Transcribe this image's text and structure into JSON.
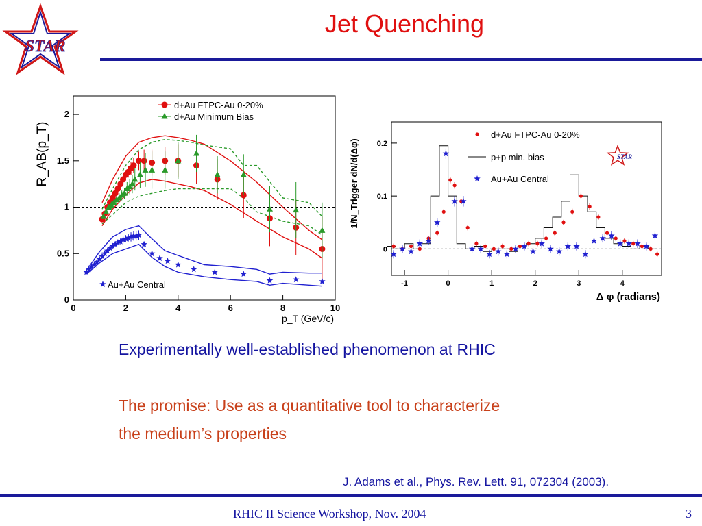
{
  "slide": {
    "title": "Jet Quenching",
    "logo_text": "STAR",
    "bullet1": "Experimentally well-established phenomenon at RHIC",
    "bullet2_line1": "The promise: Use as a quantitative tool to characterize",
    "bullet2_line2": "the medium’s properties",
    "citation": "J. Adams et al., Phys. Rev. Lett. 91, 072304 (2003).",
    "footer": "RHIC II Science Workshop, Nov. 2004",
    "page_number": "3",
    "colors": {
      "title": "#e01010",
      "bar": "#1a1a9a",
      "blue_text": "#1414a0",
      "orange_text": "#c8401a"
    }
  },
  "chart_data": [
    {
      "type": "scatter",
      "ylabel": "R_AB(p_T)",
      "xlabel": "p_T (GeV/c)",
      "xlim": [
        0,
        10
      ],
      "ylim": [
        0,
        2.2
      ],
      "xticks": [
        0,
        2,
        4,
        6,
        8,
        10
      ],
      "yticks": [
        0,
        0.5,
        1,
        1.5,
        2
      ],
      "reference_line_y": 1,
      "legend_placement": "top",
      "series": [
        {
          "name": "d+Au FTPC-Au 0-20%",
          "color": "#e01010",
          "marker": "circle",
          "x": [
            1.1,
            1.2,
            1.3,
            1.4,
            1.5,
            1.6,
            1.7,
            1.8,
            1.9,
            2.0,
            2.1,
            2.2,
            2.3,
            2.5,
            2.7,
            3.0,
            3.5,
            4.0,
            4.7,
            5.5,
            6.5,
            7.5,
            8.5,
            9.5
          ],
          "y": [
            0.87,
            0.93,
            1.0,
            1.05,
            1.1,
            1.15,
            1.2,
            1.25,
            1.3,
            1.35,
            1.38,
            1.42,
            1.45,
            1.5,
            1.5,
            1.48,
            1.5,
            1.5,
            1.45,
            1.3,
            1.13,
            0.88,
            0.78,
            0.55
          ],
          "err": [
            0.03,
            0.03,
            0.03,
            0.03,
            0.04,
            0.04,
            0.04,
            0.05,
            0.05,
            0.05,
            0.06,
            0.07,
            0.08,
            0.1,
            0.12,
            0.14,
            0.15,
            0.18,
            0.2,
            0.22,
            0.25,
            0.3,
            0.3,
            0.35
          ]
        },
        {
          "name": "d+Au Minimum Bias",
          "color": "#2a9a2a",
          "marker": "triangle",
          "x": [
            1.15,
            1.25,
            1.35,
            1.45,
            1.55,
            1.65,
            1.75,
            1.85,
            1.95,
            2.05,
            2.15,
            2.25,
            2.35,
            2.55,
            2.75,
            3.0,
            3.5,
            4.0,
            4.7,
            5.5,
            6.5,
            7.5,
            8.5,
            9.5
          ],
          "y": [
            0.9,
            0.95,
            1.0,
            1.02,
            1.05,
            1.08,
            1.1,
            1.13,
            1.15,
            1.2,
            1.22,
            1.25,
            1.3,
            1.35,
            1.4,
            1.4,
            1.4,
            1.5,
            1.58,
            1.35,
            1.35,
            0.98,
            0.97,
            0.75
          ],
          "err": [
            0.03,
            0.03,
            0.03,
            0.04,
            0.04,
            0.04,
            0.05,
            0.05,
            0.06,
            0.07,
            0.08,
            0.1,
            0.12,
            0.14,
            0.18,
            0.2,
            0.2,
            0.2,
            0.2,
            0.2,
            0.22,
            0.25,
            0.3,
            0.3
          ]
        },
        {
          "name": "Au+Au Central",
          "color": "#2020d0",
          "marker": "star",
          "x": [
            0.5,
            0.6,
            0.7,
            0.8,
            0.9,
            1.0,
            1.1,
            1.2,
            1.3,
            1.4,
            1.5,
            1.6,
            1.7,
            1.8,
            1.9,
            2.0,
            2.1,
            2.2,
            2.3,
            2.4,
            2.5,
            2.7,
            3.0,
            3.3,
            3.6,
            4.0,
            4.6,
            5.4,
            6.5,
            7.5,
            8.5,
            9.5
          ],
          "y": [
            0.3,
            0.33,
            0.36,
            0.38,
            0.41,
            0.44,
            0.47,
            0.5,
            0.53,
            0.56,
            0.58,
            0.6,
            0.62,
            0.63,
            0.65,
            0.66,
            0.67,
            0.68,
            0.69,
            0.69,
            0.7,
            0.6,
            0.5,
            0.45,
            0.42,
            0.38,
            0.33,
            0.3,
            0.28,
            0.21,
            0.22,
            0.2
          ],
          "err": [
            0.01,
            0.01,
            0.01,
            0.01,
            0.01,
            0.01,
            0.02,
            0.02,
            0.02,
            0.02,
            0.03,
            0.03,
            0.03,
            0.03,
            0.04,
            0.04,
            0.04,
            0.05,
            0.05,
            0.05,
            0.05,
            0.03,
            0.02,
            0.02,
            0.02,
            0.02,
            0.02,
            0.02,
            0.02,
            0.02,
            0.02,
            0.02
          ]
        }
      ],
      "bands": [
        {
          "for": "d+Au FTPC-Au 0-20%",
          "color": "#e01010",
          "style": "solid",
          "x": [
            1.1,
            1.5,
            2.0,
            2.5,
            3.0,
            3.5,
            4.0,
            4.5,
            5.0,
            6.0,
            7.0,
            8.0,
            9.0,
            9.5
          ],
          "upper": [
            1.05,
            1.3,
            1.55,
            1.7,
            1.75,
            1.77,
            1.75,
            1.72,
            1.68,
            1.5,
            1.27,
            1.0,
            0.75,
            0.65
          ],
          "lower": [
            0.8,
            0.98,
            1.13,
            1.26,
            1.3,
            1.28,
            1.25,
            1.22,
            1.18,
            1.03,
            0.85,
            0.68,
            0.55,
            0.45
          ]
        },
        {
          "for": "d+Au Minimum Bias",
          "color": "#2a9a2a",
          "style": "dashed",
          "x": [
            1.1,
            1.5,
            2.0,
            2.5,
            3.0,
            3.5,
            4.0,
            4.5,
            5.0,
            6.0,
            6.5,
            7.0,
            8.0,
            9.0,
            9.5
          ],
          "upper": [
            0.98,
            1.2,
            1.45,
            1.62,
            1.7,
            1.73,
            1.72,
            1.7,
            1.67,
            1.63,
            1.45,
            1.45,
            1.1,
            1.05,
            0.9
          ],
          "lower": [
            0.82,
            0.92,
            1.05,
            1.12,
            1.15,
            1.18,
            1.2,
            1.2,
            1.2,
            1.2,
            1.1,
            0.95,
            0.85,
            0.8,
            0.7
          ]
        },
        {
          "for": "Au+Au Central",
          "color": "#2020d0",
          "style": "solid",
          "x": [
            0.5,
            1.0,
            1.5,
            2.0,
            2.5,
            3.0,
            3.5,
            4.0,
            5.0,
            6.0,
            7.0,
            7.5,
            8.0,
            9.0,
            9.5
          ],
          "upper": [
            0.32,
            0.52,
            0.68,
            0.76,
            0.8,
            0.66,
            0.53,
            0.48,
            0.38,
            0.36,
            0.33,
            0.28,
            0.3,
            0.29,
            0.29
          ],
          "lower": [
            0.28,
            0.4,
            0.5,
            0.55,
            0.6,
            0.46,
            0.36,
            0.3,
            0.25,
            0.22,
            0.2,
            0.16,
            0.18,
            0.16,
            0.15
          ]
        }
      ]
    },
    {
      "type": "scatter",
      "ylabel": "1/N_Trigger dN/d(Δφ)",
      "xlabel": "Δ φ (radians)",
      "xlim": [
        -1.3,
        4.9
      ],
      "ylim": [
        -0.05,
        0.24
      ],
      "xticks": [
        -1,
        0,
        1,
        2,
        3,
        4
      ],
      "yticks": [
        0,
        0.1,
        0.2
      ],
      "reference_line_y": 0,
      "legend_placement": "top-right",
      "series": [
        {
          "name": "p+p min. bias",
          "color": "#111111",
          "marker": "step-line",
          "x": [
            -1.3,
            -1.1,
            -0.9,
            -0.7,
            -0.5,
            -0.3,
            -0.1,
            0.1,
            0.3,
            0.5,
            0.7,
            0.9,
            1.1,
            1.3,
            1.5,
            1.7,
            1.9,
            2.1,
            2.3,
            2.5,
            2.7,
            2.9,
            3.1,
            3.3,
            3.5,
            3.7,
            3.9,
            4.1,
            4.3,
            4.5,
            4.7
          ],
          "y": [
            0.005,
            0.0,
            0.01,
            0.0,
            0.01,
            0.1,
            0.195,
            0.1,
            0.01,
            0.0,
            0.005,
            -0.005,
            0.0,
            0.0,
            -0.005,
            0.005,
            0.01,
            0.02,
            0.04,
            0.06,
            0.09,
            0.14,
            0.1,
            0.07,
            0.04,
            0.02,
            0.01,
            0.005,
            0.0,
            0.005,
            0.0
          ]
        },
        {
          "name": "d+Au FTPC-Au 0-20%",
          "color": "#e01010",
          "marker": "dot",
          "x": [
            -1.25,
            -1.05,
            -0.85,
            -0.65,
            -0.45,
            -0.25,
            -0.1,
            0.05,
            0.15,
            0.3,
            0.45,
            0.65,
            0.85,
            1.05,
            1.25,
            1.45,
            1.65,
            1.85,
            2.05,
            2.25,
            2.45,
            2.65,
            2.85,
            3.05,
            3.25,
            3.45,
            3.65,
            3.85,
            4.05,
            4.25,
            4.45,
            4.65,
            4.8
          ],
          "y": [
            0.005,
            0.0,
            0.005,
            0.0,
            0.02,
            0.03,
            0.07,
            0.13,
            0.12,
            0.09,
            0.04,
            0.01,
            0.005,
            0.0,
            0.005,
            0.0,
            0.005,
            0.01,
            0.01,
            0.02,
            0.03,
            0.05,
            0.07,
            0.1,
            0.08,
            0.06,
            0.03,
            0.02,
            0.015,
            0.01,
            0.005,
            0.0,
            -0.01
          ],
          "err": [
            0.005,
            0.005,
            0.005,
            0.005,
            0.005,
            0.005,
            0.005,
            0.006,
            0.006,
            0.005,
            0.005,
            0.005,
            0.005,
            0.005,
            0.005,
            0.005,
            0.005,
            0.005,
            0.005,
            0.005,
            0.005,
            0.005,
            0.006,
            0.006,
            0.006,
            0.005,
            0.005,
            0.005,
            0.005,
            0.005,
            0.005,
            0.005,
            0.005
          ]
        },
        {
          "name": "Au+Au Central",
          "color": "#2020d0",
          "marker": "star",
          "x": [
            -1.25,
            -1.05,
            -0.85,
            -0.65,
            -0.45,
            -0.25,
            -0.05,
            0.15,
            0.35,
            0.55,
            0.75,
            0.95,
            1.15,
            1.35,
            1.55,
            1.75,
            1.95,
            2.15,
            2.35,
            2.55,
            2.75,
            2.95,
            3.15,
            3.35,
            3.55,
            3.75,
            3.95,
            4.15,
            4.35,
            4.55,
            4.75
          ],
          "y": [
            -0.01,
            0.0,
            -0.005,
            0.01,
            0.015,
            0.05,
            0.18,
            0.09,
            0.09,
            0.0,
            0.0,
            -0.01,
            -0.005,
            -0.01,
            0.0,
            0.005,
            -0.005,
            0.01,
            0.0,
            -0.005,
            0.005,
            0.005,
            -0.01,
            0.015,
            0.02,
            0.025,
            0.01,
            0.01,
            0.01,
            0.005,
            0.025
          ],
          "err": [
            0.008,
            0.008,
            0.008,
            0.008,
            0.008,
            0.008,
            0.01,
            0.01,
            0.01,
            0.008,
            0.008,
            0.008,
            0.008,
            0.008,
            0.008,
            0.008,
            0.008,
            0.008,
            0.008,
            0.008,
            0.008,
            0.008,
            0.008,
            0.008,
            0.008,
            0.008,
            0.008,
            0.008,
            0.008,
            0.008,
            0.008
          ]
        }
      ]
    }
  ]
}
